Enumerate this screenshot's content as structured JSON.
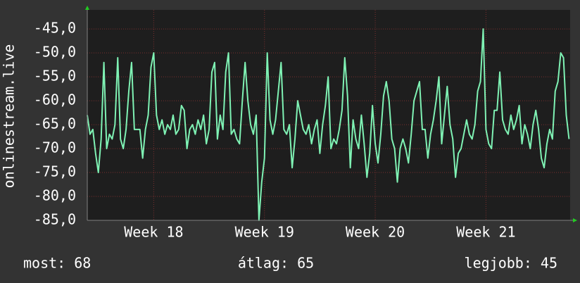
{
  "chart_data": {
    "type": "line",
    "ylabel": "onlinestream.live",
    "color": "#7ff2b4",
    "grid": true,
    "ylim": [
      -85,
      -41
    ],
    "yticks": [
      {
        "value": -85,
        "label": "-85,0"
      },
      {
        "value": -80,
        "label": "-80,0"
      },
      {
        "value": -75,
        "label": "-75,0"
      },
      {
        "value": -70,
        "label": "-70,0"
      },
      {
        "value": -65,
        "label": "-65,0"
      },
      {
        "value": -60,
        "label": "-60,0"
      },
      {
        "value": -55,
        "label": "-55,0"
      },
      {
        "value": -50,
        "label": "-50,0"
      },
      {
        "value": -45,
        "label": "-45,0"
      }
    ],
    "xlim": [
      17.4,
      21.76
    ],
    "xticks": [
      {
        "value": 18,
        "label": "Week 18"
      },
      {
        "value": 19,
        "label": "Week 19"
      },
      {
        "value": 20,
        "label": "Week 20"
      },
      {
        "value": 21,
        "label": "Week 21"
      }
    ],
    "x": [
      17.4,
      17.425,
      17.45,
      17.475,
      17.5,
      17.525,
      17.55,
      17.575,
      17.6,
      17.625,
      17.65,
      17.675,
      17.7,
      17.725,
      17.75,
      17.775,
      17.8,
      17.825,
      17.85,
      17.875,
      17.9,
      17.925,
      17.95,
      17.975,
      18,
      18.025,
      18.05,
      18.075,
      18.1,
      18.125,
      18.15,
      18.175,
      18.2,
      18.225,
      18.25,
      18.275,
      18.3,
      18.325,
      18.35,
      18.375,
      18.4,
      18.425,
      18.45,
      18.475,
      18.5,
      18.525,
      18.55,
      18.575,
      18.6,
      18.625,
      18.65,
      18.675,
      18.7,
      18.725,
      18.75,
      18.775,
      18.8,
      18.825,
      18.85,
      18.875,
      18.9,
      18.925,
      18.95,
      18.975,
      19,
      19.025,
      19.05,
      19.075,
      19.1,
      19.125,
      19.15,
      19.175,
      19.2,
      19.225,
      19.25,
      19.275,
      19.3,
      19.325,
      19.35,
      19.375,
      19.4,
      19.425,
      19.45,
      19.475,
      19.5,
      19.525,
      19.55,
      19.575,
      19.6,
      19.625,
      19.65,
      19.675,
      19.7,
      19.725,
      19.75,
      19.775,
      19.8,
      19.825,
      19.85,
      19.875,
      19.9,
      19.925,
      19.95,
      19.975,
      20,
      20.025,
      20.05,
      20.075,
      20.1,
      20.125,
      20.15,
      20.175,
      20.2,
      20.225,
      20.25,
      20.275,
      20.3,
      20.325,
      20.35,
      20.375,
      20.4,
      20.425,
      20.45,
      20.475,
      20.5,
      20.525,
      20.55,
      20.575,
      20.6,
      20.625,
      20.65,
      20.675,
      20.7,
      20.725,
      20.75,
      20.775,
      20.8,
      20.825,
      20.85,
      20.875,
      20.9,
      20.925,
      20.95,
      20.975,
      21,
      21.025,
      21.05,
      21.075,
      21.1,
      21.125,
      21.15,
      21.175,
      21.2,
      21.225,
      21.25,
      21.275,
      21.3,
      21.325,
      21.35,
      21.375,
      21.4,
      21.425,
      21.45,
      21.475,
      21.5,
      21.525,
      21.55,
      21.575,
      21.6,
      21.625,
      21.65,
      21.675,
      21.7,
      21.725,
      21.75
    ],
    "values": [
      -63,
      -67,
      -66,
      -71,
      -75,
      -68,
      -52,
      -70,
      -67,
      -68,
      -65,
      -51,
      -68,
      -70,
      -66,
      -58,
      -52,
      -66,
      -66,
      -66,
      -72,
      -66,
      -63,
      -53,
      -50,
      -63,
      -66,
      -64,
      -67,
      -65,
      -66,
      -63,
      -67,
      -66,
      -61,
      -62,
      -70,
      -66,
      -65,
      -67,
      -64,
      -66,
      -63,
      -69,
      -66,
      -54,
      -52,
      -68,
      -63,
      -66,
      -54,
      -50,
      -67,
      -66,
      -68,
      -69,
      -60,
      -52,
      -60,
      -65,
      -67,
      -63,
      -85,
      -77,
      -72,
      -50,
      -64,
      -67,
      -64,
      -58,
      -52,
      -66,
      -67,
      -65,
      -74,
      -68,
      -60,
      -63,
      -66,
      -67,
      -65,
      -69,
      -66,
      -64,
      -71,
      -65,
      -61,
      -55,
      -70,
      -68,
      -69,
      -66,
      -62,
      -51,
      -59,
      -74,
      -64,
      -68,
      -70,
      -63,
      -69,
      -76,
      -71,
      -61,
      -69,
      -73,
      -67,
      -59,
      -56,
      -60,
      -68,
      -70,
      -77,
      -70,
      -68,
      -70,
      -73,
      -67,
      -60,
      -58,
      -56,
      -66,
      -66,
      -72,
      -67,
      -64,
      -60,
      -55,
      -69,
      -63,
      -57,
      -65,
      -68,
      -76,
      -71,
      -70,
      -67,
      -64,
      -67,
      -68,
      -65,
      -58,
      -56,
      -45,
      -66,
      -69,
      -70,
      -62,
      -62,
      -54,
      -64,
      -66,
      -67,
      -63,
      -66,
      -64,
      -61,
      -69,
      -65,
      -67,
      -70,
      -65,
      -62,
      -66,
      -72,
      -74,
      -69,
      -66,
      -68,
      -58,
      -56,
      -50,
      -51,
      -63,
      -68
    ],
    "footer": [
      "most: 68",
      "átlag: 65",
      "legjobb: 45"
    ]
  }
}
